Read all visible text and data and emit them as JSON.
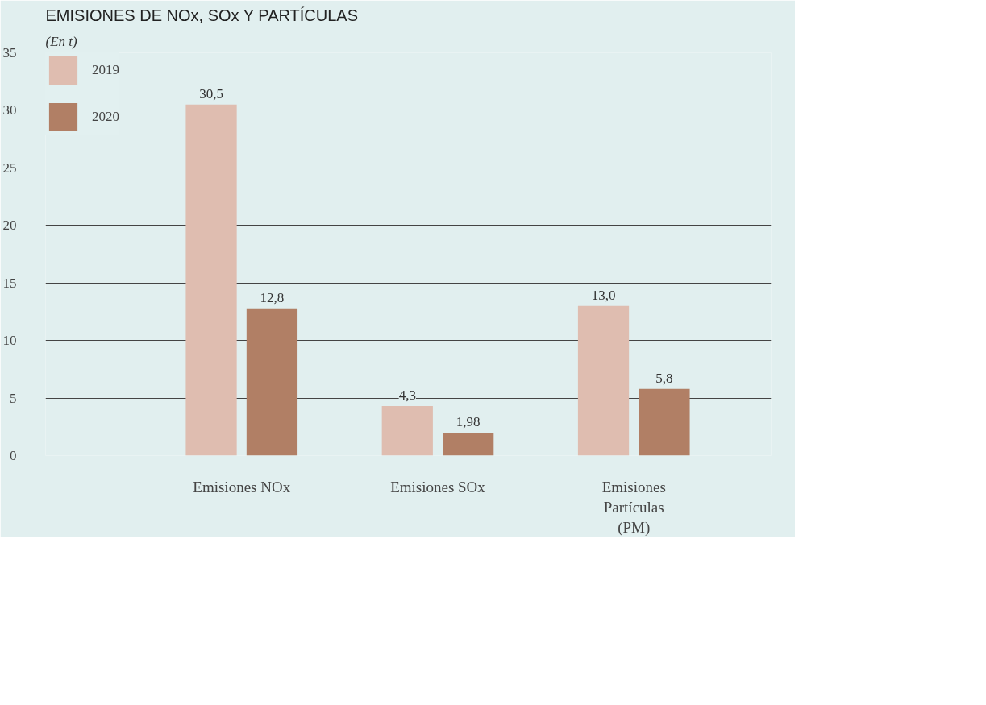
{
  "chart_data": {
    "type": "bar",
    "title": "EMISIONES DE NOx, SOx Y PARTÍCULAS",
    "subtitle": "(En t)",
    "categories": [
      "Emisiones NOx",
      "Emisiones SOx",
      "Emisiones Partículas (PM)"
    ],
    "series": [
      {
        "name": "2019",
        "color": "#dfbdb0",
        "values": [
          30.5,
          4.3,
          13.0
        ],
        "value_labels": [
          "30,5",
          "4,3",
          "13,0"
        ]
      },
      {
        "name": "2020",
        "color": "#b17f65",
        "values": [
          12.8,
          1.98,
          5.8
        ],
        "value_labels": [
          "12,8",
          "1,98",
          "5,8"
        ]
      }
    ],
    "ylim": [
      0,
      35
    ],
    "yticks": [
      0,
      5,
      10,
      15,
      20,
      25,
      30,
      35
    ],
    "grid": "y",
    "legend": "top left"
  }
}
